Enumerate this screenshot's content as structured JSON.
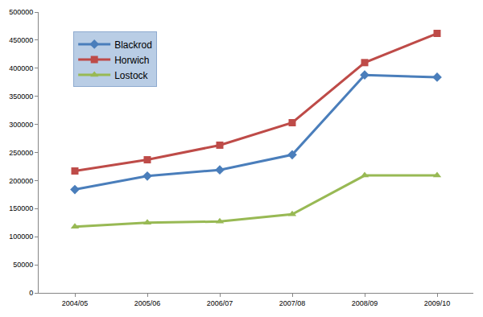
{
  "chart_data": {
    "type": "line",
    "categories": [
      "2004/05",
      "2005/06",
      "2006/07",
      "2007/08",
      "2008/09",
      "2009/10"
    ],
    "series": [
      {
        "name": "Blackrod",
        "color": "#4a7ebb",
        "marker": "diamond",
        "line_style": "solid",
        "values": [
          184000,
          208000,
          219000,
          246000,
          388000,
          384000
        ]
      },
      {
        "name": "Horwich",
        "color": "#be4b48",
        "marker": "square",
        "line_style": "solid",
        "values": [
          217000,
          237000,
          263000,
          303000,
          410000,
          462000
        ]
      },
      {
        "name": "Lostock",
        "color": "#98b954",
        "marker": "triangle",
        "line_style": "solid",
        "values": [
          118000,
          125000,
          127000,
          140000,
          209000,
          209000
        ]
      }
    ],
    "ylim": [
      0,
      500000
    ],
    "yticks": [
      0,
      50000,
      100000,
      150000,
      200000,
      250000,
      300000,
      350000,
      400000,
      450000,
      500000
    ],
    "grid": false,
    "legend": "top-left"
  }
}
